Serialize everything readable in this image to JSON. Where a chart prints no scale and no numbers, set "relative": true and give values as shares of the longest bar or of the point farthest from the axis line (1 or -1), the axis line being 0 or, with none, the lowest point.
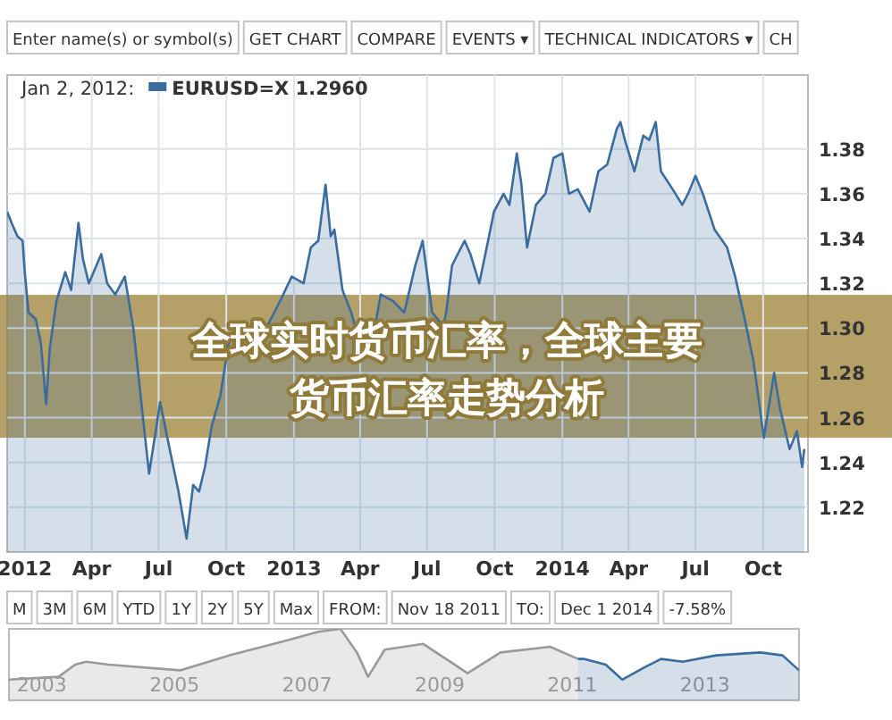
{
  "chart_data": [
    {
      "type": "area",
      "title": "全球实时货币汇率，全球主要货币汇率走势分析",
      "legend_title": "Jan 2, 2012:",
      "legend": "top left",
      "grid": true,
      "series": [
        {
          "name": "EURUSD=X 1.2960",
          "color": "#3b6c9e",
          "x": [
            "2011-12-08",
            "2011-12-14",
            "2011-12-18",
            "2011-12-22",
            "2011-12-29",
            "2012-01-01",
            "2012-01-06",
            "2012-01-16",
            "2012-01-23",
            "2012-01-30",
            "2012-02-04",
            "2012-02-13",
            "2012-02-25",
            "2012-03-04",
            "2012-03-14",
            "2012-03-20",
            "2012-03-28",
            "2012-04-14",
            "2012-04-22",
            "2012-05-03",
            "2012-05-16",
            "2012-05-28",
            "2012-06-10",
            "2012-06-18",
            "2012-06-27",
            "2012-07-03",
            "2012-07-16",
            "2012-07-28",
            "2012-08-08",
            "2012-08-17",
            "2012-08-25",
            "2012-09-02",
            "2012-09-11",
            "2012-09-23",
            "2012-10-04",
            "2012-10-17",
            "2012-10-29",
            "2012-11-18",
            "2012-12-13",
            "2012-12-29",
            "2013-01-14",
            "2013-01-24",
            "2013-02-03",
            "2013-02-13",
            "2013-02-20",
            "2013-02-25",
            "2013-03-08",
            "2013-03-20",
            "2013-04-02",
            "2013-04-17",
            "2013-04-29",
            "2013-05-16",
            "2013-05-31",
            "2013-06-15",
            "2013-06-25",
            "2013-07-08",
            "2013-07-23",
            "2013-07-27",
            "2013-08-04",
            "2013-08-21",
            "2013-08-29",
            "2013-09-10",
            "2013-09-22",
            "2013-09-30",
            "2013-10-13",
            "2013-10-21",
            "2013-10-31",
            "2013-11-06",
            "2013-11-14",
            "2013-11-26",
            "2013-12-09",
            "2013-12-20",
            "2014-01-01",
            "2014-01-10",
            "2014-01-22",
            "2014-02-07",
            "2014-02-19",
            "2014-03-03",
            "2014-03-16",
            "2014-03-21",
            "2014-03-27",
            "2014-04-09",
            "2014-04-21",
            "2014-04-29",
            "2014-05-08",
            "2014-05-15",
            "2014-05-31",
            "2014-06-13",
            "2014-06-21",
            "2014-07-01",
            "2014-07-11",
            "2014-07-27",
            "2014-08-13",
            "2014-08-24",
            "2014-09-06",
            "2014-09-18",
            "2014-10-02",
            "2014-10-16",
            "2014-10-24",
            "2014-11-06",
            "2014-11-16",
            "2014-11-23",
            "2014-11-26"
          ],
          "values": [
            1.352,
            1.347,
            1.344,
            1.341,
            1.339,
            1.325,
            1.307,
            1.304,
            1.293,
            1.266,
            1.291,
            1.312,
            1.325,
            1.317,
            1.347,
            1.331,
            1.32,
            1.333,
            1.32,
            1.315,
            1.323,
            1.299,
            1.259,
            1.235,
            1.254,
            1.267,
            1.246,
            1.227,
            1.206,
            1.23,
            1.227,
            1.238,
            1.256,
            1.27,
            1.293,
            1.301,
            1.288,
            1.296,
            1.312,
            1.323,
            1.32,
            1.336,
            1.339,
            1.364,
            1.341,
            1.344,
            1.317,
            1.307,
            1.291,
            1.293,
            1.315,
            1.312,
            1.307,
            1.328,
            1.339,
            1.307,
            1.301,
            1.307,
            1.328,
            1.339,
            1.333,
            1.32,
            1.339,
            1.352,
            1.36,
            1.355,
            1.378,
            1.365,
            1.336,
            1.355,
            1.36,
            1.376,
            1.378,
            1.36,
            1.362,
            1.352,
            1.37,
            1.373,
            1.389,
            1.392,
            1.384,
            1.37,
            1.386,
            1.384,
            1.392,
            1.37,
            1.362,
            1.355,
            1.36,
            1.368,
            1.36,
            1.344,
            1.336,
            1.323,
            1.304,
            1.285,
            1.251,
            1.28,
            1.264,
            1.246,
            1.254,
            1.238,
            1.246
          ]
        }
      ],
      "xlim": [
        "2011-12-08",
        "2014-12-01"
      ],
      "xticks": [
        {
          "value": "2012-01-01",
          "label": "2012"
        },
        {
          "value": "2012-04-01",
          "label": "Apr"
        },
        {
          "value": "2012-07-01",
          "label": "Jul"
        },
        {
          "value": "2012-10-01",
          "label": "Oct"
        },
        {
          "value": "2013-01-01",
          "label": "2013"
        },
        {
          "value": "2013-04-01",
          "label": "Apr"
        },
        {
          "value": "2013-07-01",
          "label": "Jul"
        },
        {
          "value": "2013-10-01",
          "label": "Oct"
        },
        {
          "value": "2014-01-01",
          "label": "2014"
        },
        {
          "value": "2014-04-01",
          "label": "Apr"
        },
        {
          "value": "2014-07-01",
          "label": "Jul"
        },
        {
          "value": "2014-10-01",
          "label": "Oct"
        }
      ],
      "ylim": [
        1.2,
        1.413
      ],
      "yticks": [
        {
          "value": 1.22,
          "label": "1.22"
        },
        {
          "value": 1.24,
          "label": "1.24"
        },
        {
          "value": 1.26,
          "label": "1.26"
        },
        {
          "value": 1.28,
          "label": "1.28"
        },
        {
          "value": 1.3,
          "label": "1.30"
        },
        {
          "value": 1.32,
          "label": "1.32"
        },
        {
          "value": 1.34,
          "label": "1.34"
        },
        {
          "value": 1.36,
          "label": "1.36"
        },
        {
          "value": 1.38,
          "label": "1.38"
        }
      ],
      "annotations": [
        "Enter name(s) or symbol(s)",
        "GET CHART",
        "COMPARE",
        "EVENTS ▾",
        "TECHNICAL INDICATORS ▾",
        "CH"
      ]
    },
    {
      "type": "area",
      "relative": true,
      "series": [
        {
          "color": "#9a9a9a",
          "x": [
            "2003-01-01",
            "2003-10-01",
            "2004-01-01",
            "2004-03-01",
            "2004-07-01",
            "2005-08-01",
            "2006-05-01",
            "2007-03-01",
            "2007-09-01",
            "2008-01-01",
            "2008-04-01",
            "2008-06-01",
            "2008-09-01",
            "2009-04-01",
            "2009-12-01",
            "2010-06-01",
            "2011-03-01",
            "2011-08-01"
          ],
          "values": [
            0.29,
            0.33,
            0.5,
            0.54,
            0.5,
            0.42,
            0.63,
            0.83,
            0.96,
            1,
            0.67,
            0.33,
            0.71,
            0.79,
            0.38,
            0.67,
            0.75,
            0.58
          ]
        },
        {
          "color": "#3b6c9e",
          "x": [
            "2011-08-01",
            "2011-09-01",
            "2012-01-01",
            "2012-04-01",
            "2012-08-01",
            "2012-11-01",
            "2013-03-01",
            "2013-09-01",
            "2014-05-01",
            "2014-09-01",
            "2014-12-01"
          ],
          "values": [
            0.58,
            0.58,
            0.5,
            0.29,
            0.46,
            0.58,
            0.54,
            0.63,
            0.67,
            0.63,
            0.42
          ]
        }
      ],
      "xlim": [
        "2003-01-01",
        "2014-12-01"
      ],
      "xticks": [
        {
          "value": "2003-07-01",
          "label": "2003"
        },
        {
          "value": "2005-07-01",
          "label": "2005"
        },
        {
          "value": "2007-07-01",
          "label": "2007"
        },
        {
          "value": "2009-07-01",
          "label": "2009"
        },
        {
          "value": "2011-07-01",
          "label": "2011"
        },
        {
          "value": "2013-07-01",
          "label": "2013"
        }
      ],
      "annotations": [
        "M",
        "3M",
        "6M",
        "YTD",
        "1Y",
        "2Y",
        "5Y",
        "Max",
        "FROM:",
        "Nov 18 2011",
        "TO:",
        "Dec 1 2014",
        "-7.58%"
      ]
    }
  ]
}
